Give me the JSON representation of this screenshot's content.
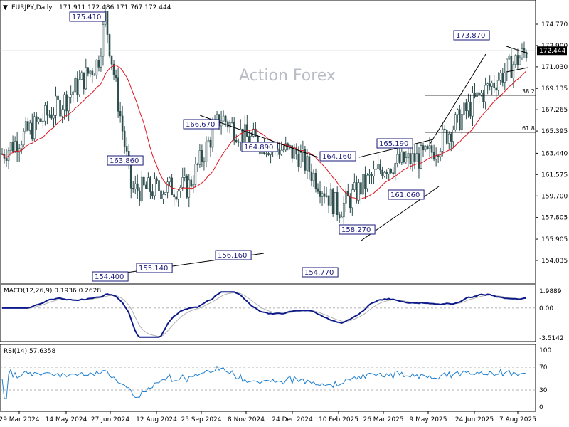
{
  "chart_data": [
    {
      "type": "candlestick",
      "title": "EURJPY,Daily",
      "ohlc_header": "171.911 172.486 171.767 172.444",
      "watermark": "Action Forex",
      "current_price": "172.444",
      "y_ticks": [
        "174.770",
        "172.900",
        "171.030",
        "169.135",
        "167.265",
        "165.395",
        "163.440",
        "161.575",
        "159.700",
        "157.805",
        "155.905",
        "154.035"
      ],
      "x_labels": [
        "29 Mar 2024",
        "14 May 2024",
        "27 Jun 2024",
        "12 Aug 2024",
        "25 Sep 2024",
        "8 Nov 2024",
        "24 Dec 2024",
        "10 Feb 2025",
        "26 Mar 2025",
        "9 May 2025",
        "24 Jun 2025",
        "7 Aug 2025"
      ],
      "annotations": [
        "175.410",
        "163.860",
        "166.670",
        "164.890",
        "164.160",
        "165.190",
        "161.060",
        "158.270",
        "154.770",
        "156.160",
        "155.140",
        "154.400",
        "173.870"
      ],
      "fib_levels": [
        "38.2",
        "61.8"
      ],
      "ylim": [
        154.035,
        174.77
      ],
      "key_points": [
        {
          "date": "29 Mar 2024",
          "close": 163.4
        },
        {
          "date": "14 May 2024",
          "close": 168.2
        },
        {
          "date": "27 Jun 2024",
          "close": 171.5
        },
        {
          "date": "11 Jul 2024",
          "close": 175.41
        },
        {
          "date": "12 Aug 2024",
          "close": 160.2
        },
        {
          "date": "25 Sep 2024",
          "close": 160.5
        },
        {
          "date": "7 Oct 2024",
          "close": 166.67
        },
        {
          "date": "8 Nov 2024",
          "close": 164.8
        },
        {
          "date": "24 Dec 2024",
          "close": 163.3
        },
        {
          "date": "10 Feb 2025",
          "close": 158.5
        },
        {
          "date": "26 Mar 2025",
          "close": 162.3
        },
        {
          "date": "9 May 2025",
          "close": 163.2
        },
        {
          "date": "24 Jun 2025",
          "close": 168.0
        },
        {
          "date": "7 Aug 2025",
          "close": 172.4
        }
      ]
    },
    {
      "type": "line",
      "title": "MACD(12,26,9) 0.1936 0.2628",
      "y_ticks": [
        "1.9889",
        "0.00",
        "-3.5142"
      ],
      "ylim": [
        -3.5142,
        1.9889
      ]
    },
    {
      "type": "line",
      "title": "RSI(14) 57.6358",
      "y_ticks": [
        "100",
        "70",
        "30",
        "0"
      ],
      "ylim": [
        0,
        100
      ]
    }
  ]
}
